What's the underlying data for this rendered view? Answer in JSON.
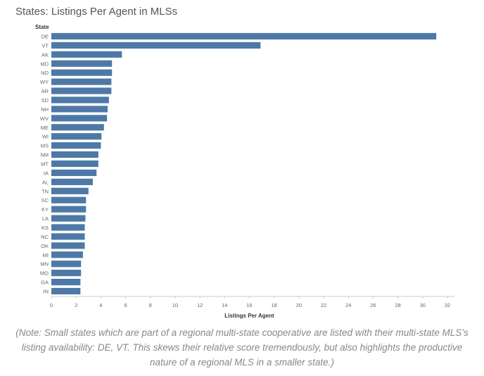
{
  "page": {
    "title": "States: Listings Per Agent in MLSs",
    "note": "(Note: Small states which are part of a regional multi-state cooperative are listed with their multi-state MLS’s listing availability: DE, VT. This skews their relative score tremendously, but also highlights the productive nature of a regional MLS in a smaller state.)"
  },
  "chart_data": {
    "type": "bar",
    "orientation": "horizontal",
    "title": "States: Listings Per Agent in MLSs",
    "xlabel": "Listings Per Agent",
    "ylabel": "State",
    "xlim": [
      0,
      32
    ],
    "xticks": [
      0,
      2,
      4,
      6,
      8,
      10,
      12,
      14,
      16,
      18,
      20,
      22,
      24,
      26,
      28,
      30,
      32
    ],
    "categories": [
      "DE",
      "VT",
      "AK",
      "MD",
      "ND",
      "WY",
      "AR",
      "SD",
      "NH",
      "WV",
      "ME",
      "WI",
      "MS",
      "NM",
      "MT",
      "IA",
      "AL",
      "TN",
      "SC",
      "KY",
      "LA",
      "KS",
      "NC",
      "OK",
      "MI",
      "MN",
      "MO",
      "GA",
      "IN"
    ],
    "values": [
      31.1,
      16.9,
      5.7,
      4.9,
      4.9,
      4.85,
      4.85,
      4.65,
      4.55,
      4.5,
      4.25,
      4.05,
      4.0,
      3.8,
      3.8,
      3.65,
      3.35,
      3.0,
      2.8,
      2.8,
      2.75,
      2.7,
      2.7,
      2.7,
      2.55,
      2.4,
      2.4,
      2.35,
      2.35
    ],
    "colors": {
      "bar": "#4e79a7",
      "axis": "#cccccc",
      "tick_text": "#666666",
      "label_text": "#333333"
    },
    "grid": false,
    "legend": "none"
  }
}
